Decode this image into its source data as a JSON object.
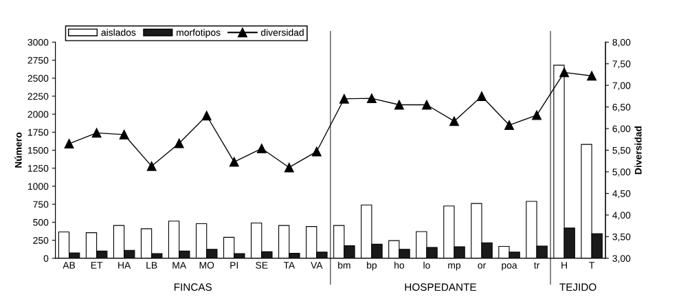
{
  "chart_data": {
    "type": "bar",
    "categories": [
      "AB",
      "ET",
      "HA",
      "LB",
      "MA",
      "MO",
      "PI",
      "SE",
      "TA",
      "VA",
      "bm",
      "bp",
      "ho",
      "lo",
      "mp",
      "or",
      "poa",
      "tr",
      "H",
      "T"
    ],
    "series": [
      {
        "name": "aislados",
        "color": "#ffffff",
        "values": [
          365,
          355,
          455,
          410,
          515,
          480,
          290,
          490,
          455,
          440,
          455,
          740,
          245,
          370,
          725,
          760,
          165,
          790,
          2680,
          1580
        ]
      },
      {
        "name": "morfotipos",
        "color": "#1a1a1a",
        "values": [
          75,
          100,
          110,
          65,
          100,
          125,
          65,
          90,
          70,
          85,
          175,
          195,
          125,
          150,
          160,
          215,
          85,
          170,
          420,
          340
        ]
      },
      {
        "name": "diversidad",
        "type": "line",
        "axis": "y2",
        "color": "#000000",
        "marker": "triangle",
        "values": [
          5.65,
          5.9,
          5.86,
          5.13,
          5.66,
          6.3,
          5.23,
          5.54,
          5.1,
          5.47,
          6.69,
          6.7,
          6.55,
          6.55,
          6.17,
          6.75,
          6.08,
          6.31,
          7.3,
          7.22
        ]
      }
    ],
    "ylabel": "Número",
    "y2label": "Diversidad",
    "ylim": [
      0,
      3000
    ],
    "yticks": [
      0,
      250,
      500,
      750,
      1000,
      1250,
      1500,
      1750,
      2000,
      2250,
      2500,
      2750,
      3000
    ],
    "y2lim": [
      3,
      8
    ],
    "y2ticks": [
      {
        "value": 3,
        "label": "3,00"
      },
      {
        "value": 3.5,
        "label": "3,50"
      },
      {
        "value": 4,
        "label": "4,00"
      },
      {
        "value": 4.5,
        "label": "4,50"
      },
      {
        "value": 5,
        "label": "5,00"
      },
      {
        "value": 5.5,
        "label": "5,50"
      },
      {
        "value": 6,
        "label": "6,00"
      },
      {
        "value": 6.5,
        "label": "6,50"
      },
      {
        "value": 7,
        "label": "7,00"
      },
      {
        "value": 7.5,
        "label": "7,50"
      },
      {
        "value": 8,
        "label": "8,00"
      }
    ],
    "annotations": [
      "FINCAS",
      "HOSPEDANTE",
      "TEJIDO"
    ],
    "legend": "top left",
    "grid": false
  }
}
